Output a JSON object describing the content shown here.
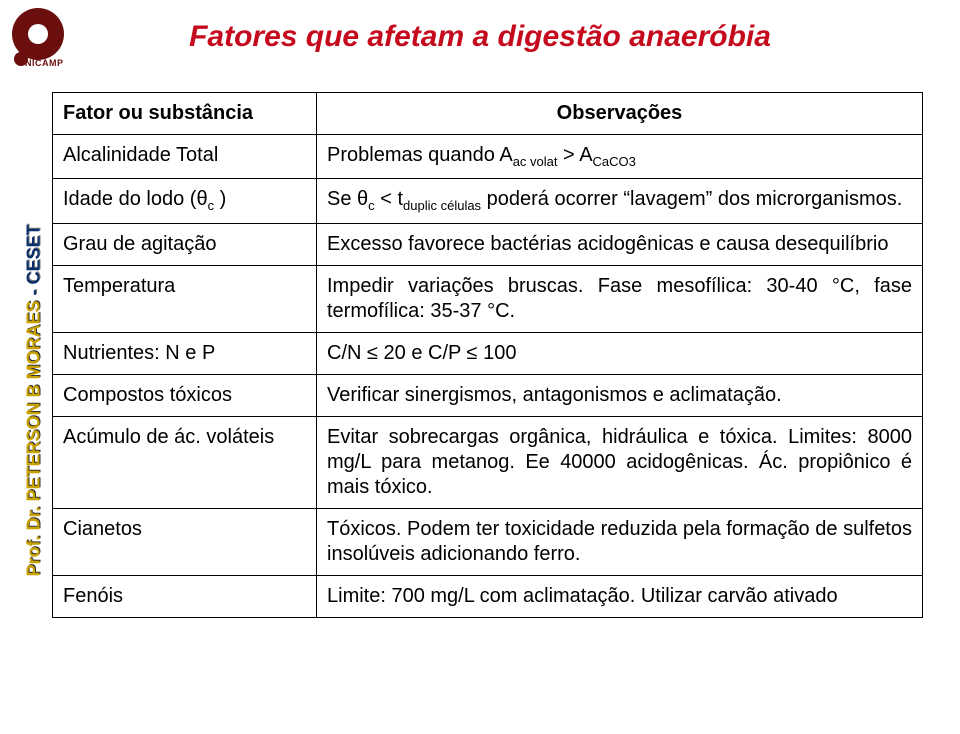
{
  "brand": {
    "short": "UNICAMP",
    "colors": {
      "brand": "#6b0e0e",
      "title": "#c50a1d",
      "sideGold": "#c9a200",
      "sideBlue": "#0b2f6b"
    }
  },
  "sideLabel": {
    "prof": "Prof. Dr.",
    "name": "PETERSON B MORAES",
    "sep": " - ",
    "org": "CESET"
  },
  "title": "Fatores que afetam a digestão anaeróbia",
  "table": {
    "headers": {
      "col1": "Fator ou substância",
      "col2": "Observações"
    },
    "rows": [
      {
        "factor_html": "Alcalinidade Total",
        "obs_html": "Problemas quando A<span class=\"sub\">ac volat</span> &gt; A<span class=\"sub\">CaCO3</span>"
      },
      {
        "factor_html": "Idade do lodo (θ<span class=\"sub\">c</span> )",
        "obs_html": "Se θ<span class=\"sub\">c</span> &lt; t<span class=\"sub\">duplic células</span> poderá ocorrer “lavagem” dos microrganismos."
      },
      {
        "factor_html": "Grau de agitação",
        "obs_html": "Excesso favorece bactérias acidogênicas e causa desequilíbrio"
      },
      {
        "factor_html": "Temperatura",
        "obs_html": "Impedir variações bruscas. Fase mesofílica: 30-40 °C, fase termofílica: 35-37 °C."
      },
      {
        "factor_html": "Nutrientes: N e P",
        "obs_html": "C/N ≤ 20 e C/P ≤ 100"
      },
      {
        "factor_html": "Compostos tóxicos",
        "obs_html": "Verificar sinergismos, antagonismos e aclimatação."
      },
      {
        "factor_html": "Acúmulo de ác. voláteis",
        "obs_html": "Evitar sobrecargas orgânica, hidráulica e tóxica. Limites: 8000 mg/L para metanog. Ee 40000 acidogênicas. Ác. propiônico é mais tóxico."
      },
      {
        "factor_html": "Cianetos",
        "obs_html": "Tóxicos. Podem ter toxicidade reduzida pela formação de sulfetos insolúveis adicionando ferro."
      },
      {
        "factor_html": "Fenóis",
        "obs_html": "Limite: 700 mg/L com aclimatação. Utilizar carvão ativado"
      }
    ]
  }
}
